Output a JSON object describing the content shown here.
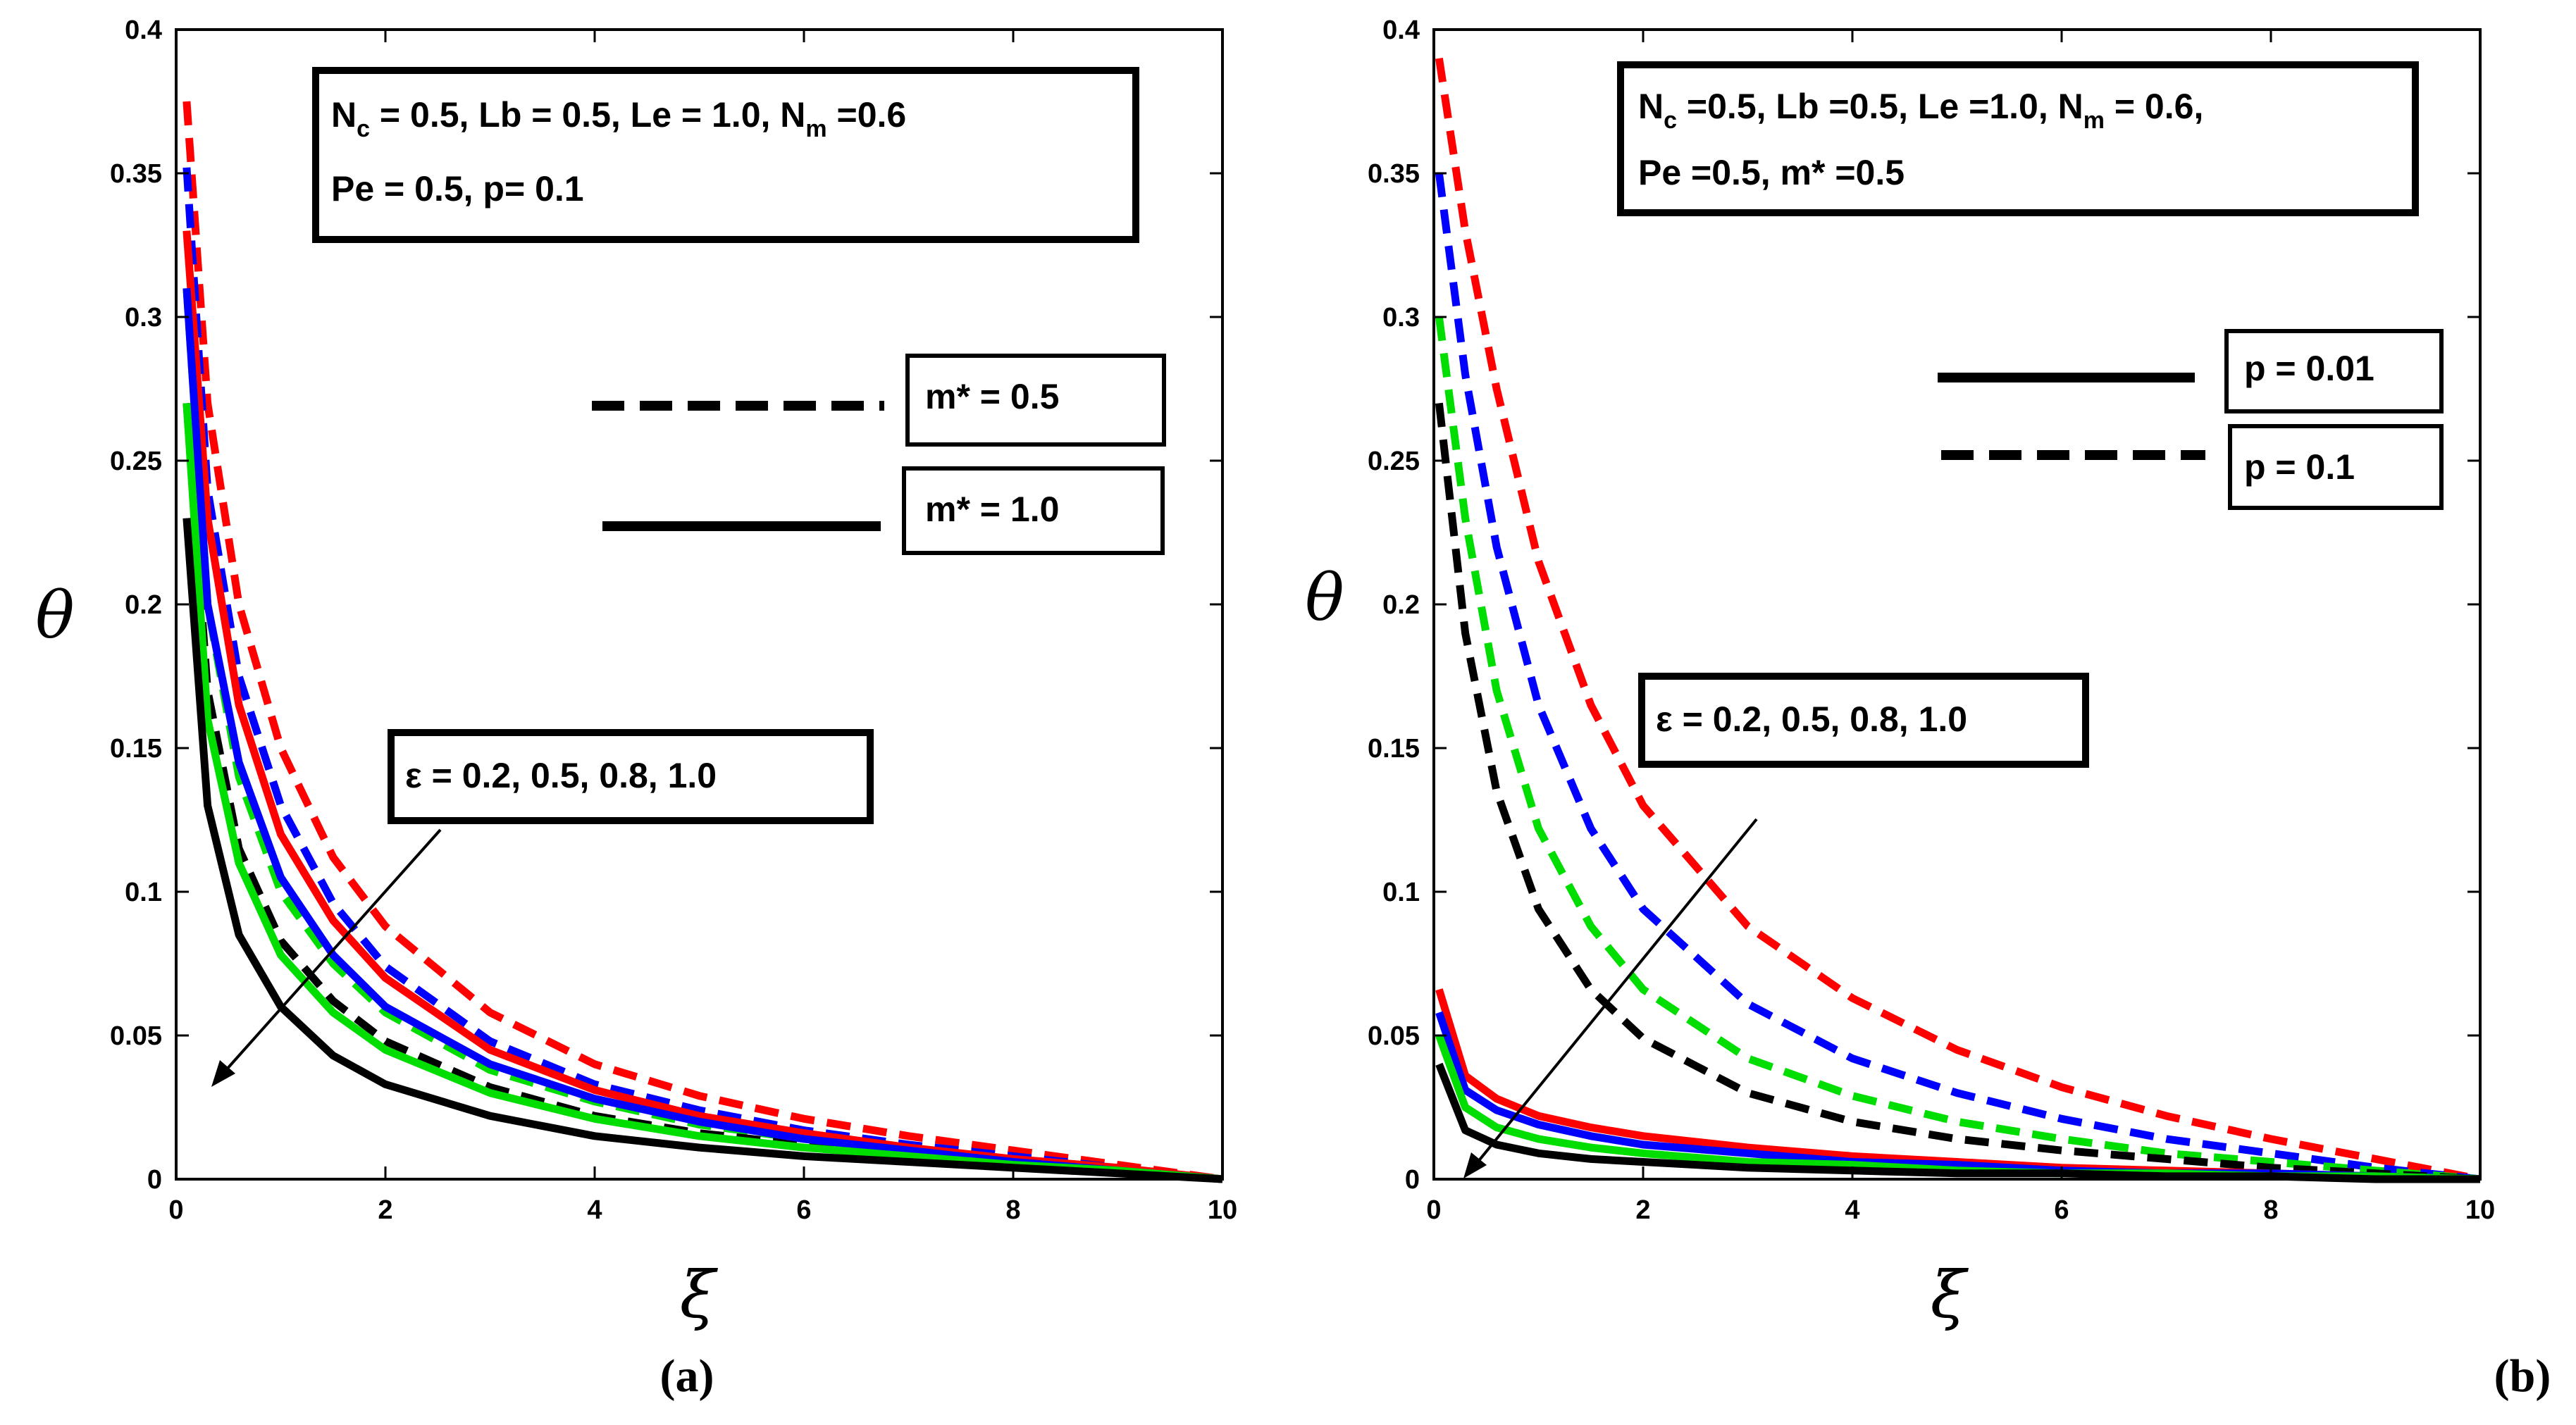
{
  "chart_data": [
    {
      "type": "line",
      "panel_label": "(a)",
      "xlabel": "ξ",
      "ylabel": "θ",
      "xlim": [
        0,
        10
      ],
      "ylim": [
        0,
        0.4
      ],
      "xticks": [
        "0",
        "2",
        "4",
        "6",
        "8",
        "10"
      ],
      "yticks": [
        "0",
        "0.05",
        "0.1",
        "0.15",
        "0.2",
        "0.25",
        "0.3",
        "0.35",
        "0.4"
      ],
      "param_box": [
        "N_c = 0.5, Lb = 0.5, Le = 1.0, N_m =0.6",
        "Pe = 0.5, p= 0.1"
      ],
      "legend": [
        {
          "label": "m* = 0.5",
          "style": "dashed"
        },
        {
          "label": "m* = 1.0",
          "style": "solid"
        }
      ],
      "annotation": "ε = 0.2, 0.5, 0.8, 1.0",
      "x": [
        0.1,
        0.3,
        0.6,
        1,
        1.5,
        2,
        3,
        4,
        5,
        6,
        7,
        8,
        9,
        10
      ],
      "series": [
        {
          "color": "#ff0000",
          "style": "dashed",
          "values": [
            0.375,
            0.27,
            0.2,
            0.15,
            0.112,
            0.088,
            0.058,
            0.04,
            0.029,
            0.021,
            0.015,
            0.01,
            0.005,
            0.0
          ]
        },
        {
          "color": "#0000ff",
          "style": "dashed",
          "values": [
            0.352,
            0.24,
            0.175,
            0.13,
            0.096,
            0.074,
            0.048,
            0.033,
            0.024,
            0.017,
            0.012,
            0.008,
            0.004,
            0.0
          ]
        },
        {
          "color": "#00dd00",
          "style": "dashed",
          "values": [
            0.31,
            0.2,
            0.14,
            0.1,
            0.075,
            0.058,
            0.038,
            0.027,
            0.019,
            0.014,
            0.01,
            0.006,
            0.003,
            0.0
          ]
        },
        {
          "color": "#000000",
          "style": "dashed",
          "values": [
            0.27,
            0.17,
            0.115,
            0.083,
            0.062,
            0.048,
            0.032,
            0.022,
            0.016,
            0.012,
            0.008,
            0.005,
            0.003,
            0.0
          ]
        },
        {
          "color": "#ff0000",
          "style": "solid",
          "values": [
            0.33,
            0.23,
            0.165,
            0.12,
            0.09,
            0.07,
            0.045,
            0.031,
            0.022,
            0.016,
            0.011,
            0.007,
            0.004,
            0.0
          ]
        },
        {
          "color": "#0000ff",
          "style": "solid",
          "values": [
            0.31,
            0.2,
            0.145,
            0.105,
            0.078,
            0.06,
            0.04,
            0.028,
            0.02,
            0.014,
            0.01,
            0.006,
            0.003,
            0.0
          ]
        },
        {
          "color": "#00dd00",
          "style": "solid",
          "values": [
            0.27,
            0.16,
            0.11,
            0.078,
            0.058,
            0.045,
            0.03,
            0.021,
            0.015,
            0.011,
            0.008,
            0.005,
            0.003,
            0.0
          ]
        },
        {
          "color": "#000000",
          "style": "solid",
          "values": [
            0.23,
            0.13,
            0.085,
            0.06,
            0.043,
            0.033,
            0.022,
            0.015,
            0.011,
            0.008,
            0.006,
            0.004,
            0.002,
            0.0
          ]
        }
      ]
    },
    {
      "type": "line",
      "panel_label": "(b)",
      "xlabel": "ξ",
      "ylabel": "θ",
      "xlim": [
        0,
        10
      ],
      "ylim": [
        0,
        0.4
      ],
      "xticks": [
        "0",
        "2",
        "4",
        "6",
        "8",
        "10"
      ],
      "yticks": [
        "0",
        "0.05",
        "0.1",
        "0.15",
        "0.2",
        "0.25",
        "0.3",
        "0.35",
        "0.4"
      ],
      "param_box": [
        "N_c =0.5, Lb =0.5, Le =1.0, N_m = 0.6,",
        "Pe =0.5, m* =0.5"
      ],
      "legend": [
        {
          "label": "p = 0.01",
          "style": "solid"
        },
        {
          "label": "p = 0.1",
          "style": "dashed"
        }
      ],
      "annotation": "ε = 0.2, 0.5, 0.8, 1.0",
      "x": [
        0.05,
        0.3,
        0.6,
        1,
        1.5,
        2,
        3,
        4,
        5,
        6,
        7,
        8,
        9,
        10
      ],
      "series": [
        {
          "color": "#ff0000",
          "style": "dashed",
          "values": [
            0.39,
            0.33,
            0.275,
            0.215,
            0.165,
            0.13,
            0.088,
            0.063,
            0.045,
            0.032,
            0.022,
            0.014,
            0.007,
            0.0
          ]
        },
        {
          "color": "#0000ff",
          "style": "dashed",
          "values": [
            0.35,
            0.28,
            0.22,
            0.165,
            0.122,
            0.094,
            0.061,
            0.042,
            0.03,
            0.021,
            0.014,
            0.009,
            0.004,
            0.0
          ]
        },
        {
          "color": "#00dd00",
          "style": "dashed",
          "values": [
            0.3,
            0.23,
            0.17,
            0.122,
            0.088,
            0.066,
            0.042,
            0.029,
            0.02,
            0.014,
            0.009,
            0.006,
            0.003,
            0.0
          ]
        },
        {
          "color": "#000000",
          "style": "dashed",
          "values": [
            0.27,
            0.19,
            0.135,
            0.094,
            0.066,
            0.049,
            0.03,
            0.02,
            0.014,
            0.01,
            0.007,
            0.004,
            0.002,
            0.0
          ]
        },
        {
          "color": "#ff0000",
          "style": "solid",
          "values": [
            0.066,
            0.036,
            0.028,
            0.022,
            0.018,
            0.015,
            0.011,
            0.008,
            0.006,
            0.004,
            0.003,
            0.002,
            0.001,
            0.0
          ]
        },
        {
          "color": "#0000ff",
          "style": "solid",
          "values": [
            0.058,
            0.031,
            0.024,
            0.019,
            0.015,
            0.012,
            0.009,
            0.006,
            0.005,
            0.003,
            0.002,
            0.002,
            0.001,
            0.0
          ]
        },
        {
          "color": "#00dd00",
          "style": "solid",
          "values": [
            0.05,
            0.025,
            0.018,
            0.014,
            0.011,
            0.009,
            0.006,
            0.005,
            0.003,
            0.002,
            0.002,
            0.001,
            0.001,
            0.0
          ]
        },
        {
          "color": "#000000",
          "style": "solid",
          "values": [
            0.04,
            0.017,
            0.012,
            0.009,
            0.007,
            0.006,
            0.004,
            0.003,
            0.002,
            0.002,
            0.001,
            0.001,
            0.0,
            0.0
          ]
        }
      ]
    }
  ]
}
